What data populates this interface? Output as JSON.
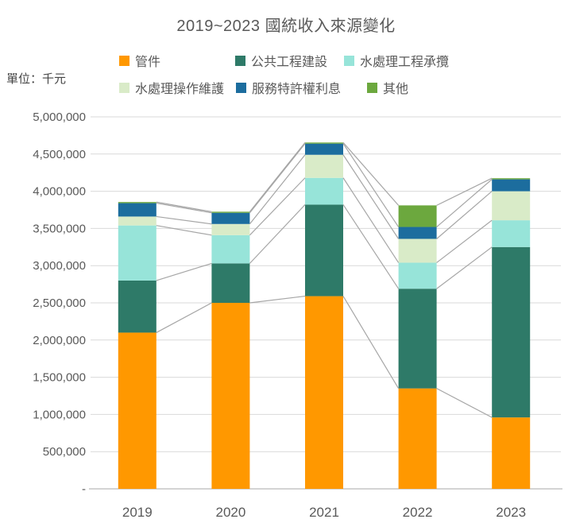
{
  "unit_label": "單位：千元",
  "chart_data": {
    "type": "bar",
    "stacked": true,
    "title": "2019~2023 國統收入來源變化",
    "ylabel": "單位：千元",
    "xlabel": "",
    "categories": [
      "2019",
      "2020",
      "2021",
      "2022",
      "2023"
    ],
    "series": [
      {
        "name": "管件",
        "color": "#FF9800",
        "values": [
          2100000,
          2500000,
          2590000,
          1350000,
          960000
        ]
      },
      {
        "name": "公共工程建設",
        "color": "#2E7A68",
        "values": [
          700000,
          530000,
          1230000,
          1340000,
          2290000
        ]
      },
      {
        "name": "水處理工程承攬",
        "color": "#97E4D9",
        "values": [
          740000,
          380000,
          360000,
          350000,
          360000
        ]
      },
      {
        "name": "水處理操作維護",
        "color": "#D9EBC8",
        "values": [
          120000,
          150000,
          310000,
          320000,
          390000
        ]
      },
      {
        "name": "服務特許權利息",
        "color": "#1C6D9E",
        "values": [
          180000,
          150000,
          150000,
          160000,
          160000
        ]
      },
      {
        "name": "其他",
        "color": "#6CA83E",
        "values": [
          15000,
          15000,
          15000,
          290000,
          15000
        ]
      }
    ],
    "ylim": [
      0,
      5000000
    ],
    "ytick_step": 500000,
    "ytick_labels": [
      "-",
      "500,000",
      "1,000,000",
      "1,500,000",
      "2,000,000",
      "2,500,000",
      "3,000,000",
      "3,500,000",
      "4,000,000",
      "4,500,000",
      "5,000,000"
    ],
    "grid": true,
    "legend_position": "top",
    "connector_lines": true,
    "colors": {
      "grid": "#D9D9D9",
      "axis": "#C6C6C6",
      "connector": "#A6A6A6",
      "text": "#595959",
      "title_text": "#595959"
    }
  }
}
